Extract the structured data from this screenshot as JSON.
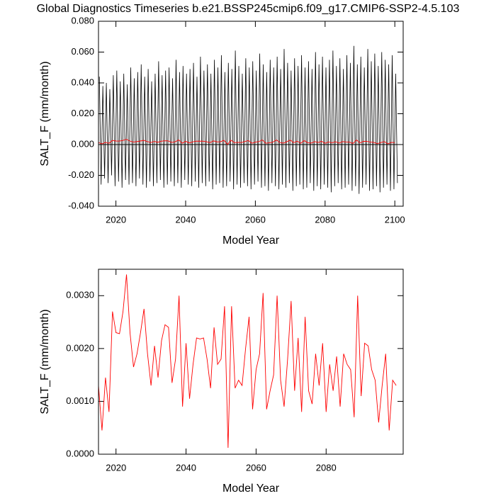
{
  "chart_data": [
    {
      "type": "line",
      "title": "Global Diagnostics Timeseries b.e21.BSSP245cmip6.f09_g17.CMIP6-SSP2-4.5.103",
      "ylabel": "SALT_F (mm/month)",
      "xlabel": "Model Year",
      "xlim": [
        2015,
        2102.4
      ],
      "xticks": [
        2020,
        2040,
        2060,
        2080,
        2100
      ],
      "ylim": [
        -0.04,
        0.08
      ],
      "yticks": [
        {
          "value": -0.04,
          "label": "-0.040"
        },
        {
          "value": -0.02,
          "label": "-0.020"
        },
        {
          "value": 0,
          "label": "0.000"
        },
        {
          "value": 0.02,
          "label": "0.020"
        },
        {
          "value": 0.04,
          "label": "0.040"
        },
        {
          "value": 0.06,
          "label": "0.060"
        },
        {
          "value": 0.08,
          "label": "0.080"
        }
      ],
      "series": [
        {
          "color": "#000000",
          "x": [
            2015.25,
            2015.75,
            2016.25,
            2016.75,
            2017.25,
            2017.75,
            2018.25,
            2018.75,
            2019.25,
            2019.75,
            2020.25,
            2020.75,
            2021.25,
            2021.75,
            2022.25,
            2022.75,
            2023.25,
            2023.75,
            2024.25,
            2024.75,
            2025.25,
            2025.75,
            2026.25,
            2026.75,
            2027.25,
            2027.75,
            2028.25,
            2028.75,
            2029.25,
            2029.75,
            2030.25,
            2030.75,
            2031.25,
            2031.75,
            2032.25,
            2032.75,
            2033.25,
            2033.75,
            2034.25,
            2034.75,
            2035.25,
            2035.75,
            2036.25,
            2036.75,
            2037.25,
            2037.75,
            2038.25,
            2038.75,
            2039.25,
            2039.75,
            2040.25,
            2040.75,
            2041.25,
            2041.75,
            2042.25,
            2042.75,
            2043.25,
            2043.75,
            2044.25,
            2044.75,
            2045.25,
            2045.75,
            2046.25,
            2046.75,
            2047.25,
            2047.75,
            2048.25,
            2048.75,
            2049.25,
            2049.75,
            2050.25,
            2050.75,
            2051.25,
            2051.75,
            2052.25,
            2052.75,
            2053.25,
            2053.75,
            2054.25,
            2054.75,
            2055.25,
            2055.75,
            2056.25,
            2056.75,
            2057.25,
            2057.75,
            2058.25,
            2058.75,
            2059.25,
            2059.75,
            2060.25,
            2060.75,
            2061.25,
            2061.75,
            2062.25,
            2062.75,
            2063.25,
            2063.75,
            2064.25,
            2064.75,
            2065.25,
            2065.75,
            2066.25,
            2066.75,
            2067.25,
            2067.75,
            2068.25,
            2068.75,
            2069.25,
            2069.75,
            2070.25,
            2070.75,
            2071.25,
            2071.75,
            2072.25,
            2072.75,
            2073.25,
            2073.75,
            2074.25,
            2074.75,
            2075.25,
            2075.75,
            2076.25,
            2076.75,
            2077.25,
            2077.75,
            2078.25,
            2078.75,
            2079.25,
            2079.75,
            2080.25,
            2080.75,
            2081.25,
            2081.75,
            2082.25,
            2082.75,
            2083.25,
            2083.75,
            2084.25,
            2084.75,
            2085.25,
            2085.75,
            2086.25,
            2086.75,
            2087.25,
            2087.75,
            2088.25,
            2088.75,
            2089.25,
            2089.75,
            2090.25,
            2090.75,
            2091.25,
            2091.75,
            2092.25,
            2092.75,
            2093.25,
            2093.75,
            2094.25,
            2094.75,
            2095.25,
            2095.75,
            2096.25,
            2096.75,
            2097.25,
            2097.75,
            2098.25,
            2098.75,
            2099.25,
            2099.75,
            2100.25,
            2100.75
          ],
          "values": [
            0.044,
            -0.026,
            0.038,
            -0.022,
            0.04,
            -0.025,
            0.036,
            -0.02,
            0.045,
            -0.027,
            0.048,
            -0.024,
            0.041,
            -0.028,
            0.046,
            -0.023,
            0.039,
            -0.026,
            0.05,
            -0.025,
            0.043,
            -0.027,
            0.047,
            -0.022,
            0.052,
            -0.026,
            0.044,
            -0.028,
            0.049,
            -0.024,
            0.041,
            -0.027,
            0.046,
            -0.025,
            0.054,
            -0.023,
            0.045,
            -0.028,
            0.048,
            -0.026,
            0.05,
            -0.024,
            0.043,
            -0.027,
            0.055,
            -0.025,
            0.047,
            -0.028,
            0.051,
            -0.023,
            0.046,
            -0.026,
            0.049,
            -0.027,
            0.053,
            -0.024,
            0.044,
            -0.028,
            0.057,
            -0.025,
            0.048,
            -0.027,
            0.052,
            -0.024,
            0.046,
            -0.029,
            0.055,
            -0.026,
            0.05,
            -0.025,
            0.058,
            -0.028,
            0.047,
            -0.027,
            0.053,
            -0.024,
            0.049,
            -0.029,
            0.061,
            -0.026,
            0.051,
            -0.028,
            0.046,
            -0.025,
            0.056,
            -0.027,
            0.05,
            -0.029,
            0.054,
            -0.026,
            0.048,
            -0.024,
            0.059,
            -0.028,
            0.052,
            -0.027,
            0.047,
            -0.03,
            0.055,
            -0.025,
            0.05,
            -0.027,
            0.057,
            -0.029,
            0.049,
            -0.026,
            0.062,
            -0.028,
            0.053,
            -0.025,
            0.048,
            -0.03,
            0.056,
            -0.027,
            0.051,
            -0.026,
            0.058,
            -0.029,
            0.05,
            -0.028,
            0.054,
            -0.025,
            0.049,
            -0.03,
            0.06,
            -0.027,
            0.052,
            -0.029,
            0.057,
            -0.026,
            0.05,
            -0.028,
            0.055,
            -0.031,
            0.061,
            -0.027,
            0.051,
            -0.025,
            0.056,
            -0.029,
            0.049,
            -0.028,
            0.058,
            -0.026,
            0.053,
            -0.03,
            0.064,
            -0.027,
            0.052,
            -0.032,
            0.057,
            -0.028,
            0.05,
            -0.026,
            0.062,
            -0.03,
            0.054,
            -0.029,
            0.059,
            -0.027,
            0.051,
            -0.031,
            0.06,
            -0.028,
            0.055,
            -0.026,
            0.052,
            -0.03,
            0.058,
            -0.029,
            0.046,
            -0.025
          ]
        },
        {
          "color": "#ff0000",
          "x": [
            2015,
            2016,
            2017,
            2018,
            2019,
            2020,
            2021,
            2022,
            2023,
            2024,
            2025,
            2026,
            2027,
            2028,
            2029,
            2030,
            2031,
            2032,
            2033,
            2034,
            2035,
            2036,
            2037,
            2038,
            2039,
            2040,
            2041,
            2042,
            2043,
            2044,
            2045,
            2046,
            2047,
            2048,
            2049,
            2050,
            2051,
            2052,
            2053,
            2054,
            2055,
            2056,
            2057,
            2058,
            2059,
            2060,
            2061,
            2062,
            2063,
            2064,
            2065,
            2066,
            2067,
            2068,
            2069,
            2070,
            2071,
            2072,
            2073,
            2074,
            2075,
            2076,
            2077,
            2078,
            2079,
            2080,
            2081,
            2082,
            2083,
            2084,
            2085,
            2086,
            2087,
            2088,
            2089,
            2090,
            2091,
            2092,
            2093,
            2094,
            2095,
            2096,
            2097,
            2098,
            2099,
            2100
          ],
          "values": [
            0.0013,
            0.00045,
            0.00145,
            0.0008,
            0.0027,
            0.0023,
            0.00228,
            0.0027,
            0.0034,
            0.0023,
            0.00165,
            0.0019,
            0.0023,
            0.00275,
            0.0019,
            0.0013,
            0.00205,
            0.00145,
            0.00215,
            0.00245,
            0.0024,
            0.00135,
            0.0018,
            0.003,
            0.0009,
            0.0021,
            0.00105,
            0.0017,
            0.0022,
            0.00218,
            0.0022,
            0.0018,
            0.00125,
            0.0024,
            0.0017,
            0.0018,
            0.0028,
            0.00012,
            0.0028,
            0.00125,
            0.0014,
            0.0013,
            0.002,
            0.0026,
            0.00085,
            0.0016,
            0.0019,
            0.00305,
            0.00085,
            0.0012,
            0.0015,
            0.003,
            0.0014,
            0.0009,
            0.0018,
            0.0029,
            0.0012,
            0.0022,
            0.0008,
            0.0026,
            0.0012,
            0.00095,
            0.0019,
            0.0013,
            0.0021,
            0.0008,
            0.0017,
            0.0012,
            0.00185,
            0.0009,
            0.0019,
            0.0017,
            0.0016,
            0.0007,
            0.003,
            0.0011,
            0.0021,
            0.00205,
            0.0016,
            0.0014,
            0.0006,
            0.0013,
            0.0019,
            0.00045,
            0.0014,
            0.0013
          ]
        }
      ]
    },
    {
      "type": "line",
      "ylabel": "SALT_F (mm/month)",
      "xlabel": "Model Year",
      "xlim": [
        2015,
        2102
      ],
      "xticks": [
        2020,
        2040,
        2060,
        2080
      ],
      "ylim": [
        0,
        0.0035
      ],
      "yticks": [
        {
          "value": 0,
          "label": "0.0000"
        },
        {
          "value": 0.001,
          "label": "0.0010"
        },
        {
          "value": 0.002,
          "label": "0.0020"
        },
        {
          "value": 0.003,
          "label": "0.0030"
        }
      ],
      "series": [
        {
          "color": "#ff0000",
          "x": [
            2015,
            2016,
            2017,
            2018,
            2019,
            2020,
            2021,
            2022,
            2023,
            2024,
            2025,
            2026,
            2027,
            2028,
            2029,
            2030,
            2031,
            2032,
            2033,
            2034,
            2035,
            2036,
            2037,
            2038,
            2039,
            2040,
            2041,
            2042,
            2043,
            2044,
            2045,
            2046,
            2047,
            2048,
            2049,
            2050,
            2051,
            2052,
            2053,
            2054,
            2055,
            2056,
            2057,
            2058,
            2059,
            2060,
            2061,
            2062,
            2063,
            2064,
            2065,
            2066,
            2067,
            2068,
            2069,
            2070,
            2071,
            2072,
            2073,
            2074,
            2075,
            2076,
            2077,
            2078,
            2079,
            2080,
            2081,
            2082,
            2083,
            2084,
            2085,
            2086,
            2087,
            2088,
            2089,
            2090,
            2091,
            2092,
            2093,
            2094,
            2095,
            2096,
            2097,
            2098,
            2099,
            2100
          ],
          "values": [
            0.0013,
            0.00045,
            0.00145,
            0.0008,
            0.0027,
            0.0023,
            0.00228,
            0.0027,
            0.0034,
            0.0023,
            0.00165,
            0.0019,
            0.0023,
            0.00275,
            0.0019,
            0.0013,
            0.00205,
            0.00145,
            0.00215,
            0.00245,
            0.0024,
            0.00135,
            0.0018,
            0.003,
            0.0009,
            0.0021,
            0.00105,
            0.0017,
            0.0022,
            0.00218,
            0.0022,
            0.0018,
            0.00125,
            0.0024,
            0.0017,
            0.0018,
            0.0028,
            0.00012,
            0.0028,
            0.00125,
            0.0014,
            0.0013,
            0.002,
            0.0026,
            0.00085,
            0.0016,
            0.0019,
            0.00305,
            0.00085,
            0.0012,
            0.0015,
            0.003,
            0.0014,
            0.0009,
            0.0018,
            0.0029,
            0.0012,
            0.0022,
            0.0008,
            0.0026,
            0.0012,
            0.00095,
            0.0019,
            0.0013,
            0.0021,
            0.0008,
            0.0017,
            0.0012,
            0.00185,
            0.0009,
            0.0019,
            0.0017,
            0.0016,
            0.0007,
            0.003,
            0.0011,
            0.0021,
            0.00205,
            0.0016,
            0.0014,
            0.0006,
            0.0013,
            0.0019,
            0.00045,
            0.0014,
            0.0013
          ]
        }
      ]
    }
  ]
}
